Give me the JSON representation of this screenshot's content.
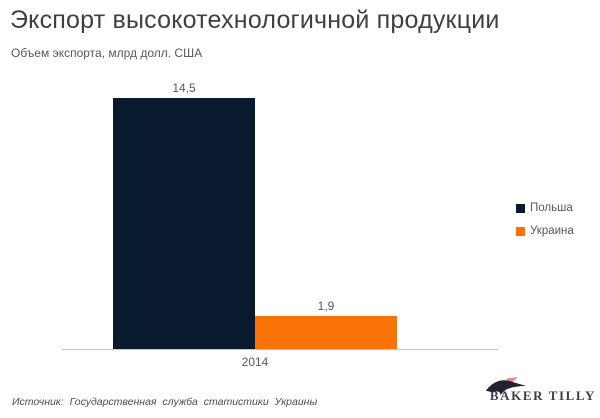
{
  "header": {
    "title": "Экспорт высокотехнологичной продукции",
    "subtitle": "Объем экспорта, млрд долл. США"
  },
  "chart_data": {
    "type": "bar",
    "categories": [
      "2014"
    ],
    "series": [
      {
        "name": "Польша",
        "values": [
          14.5
        ],
        "display_label": "14,5",
        "color": "#0a1a2e"
      },
      {
        "name": "Украина",
        "values": [
          1.9
        ],
        "display_label": "1,9",
        "color": "#f97306"
      }
    ],
    "title": "Экспорт высокотехнологичной продукции",
    "subtitle": "Объем экспорта, млрд долл. США",
    "xlabel": "",
    "ylabel": "млрд долл. США",
    "ylim": [
      0,
      15
    ],
    "grid": false,
    "legend_position": "right",
    "axis_line_color": "#c3c3c3"
  },
  "legend": {
    "items": [
      {
        "label": "Польша",
        "color": "#0a1a2e"
      },
      {
        "label": "Украина",
        "color": "#f97306"
      }
    ]
  },
  "footer": {
    "source": "Источник:  Государственная  служба статистики Украины",
    "logo_text": "BAKER TILLY"
  }
}
